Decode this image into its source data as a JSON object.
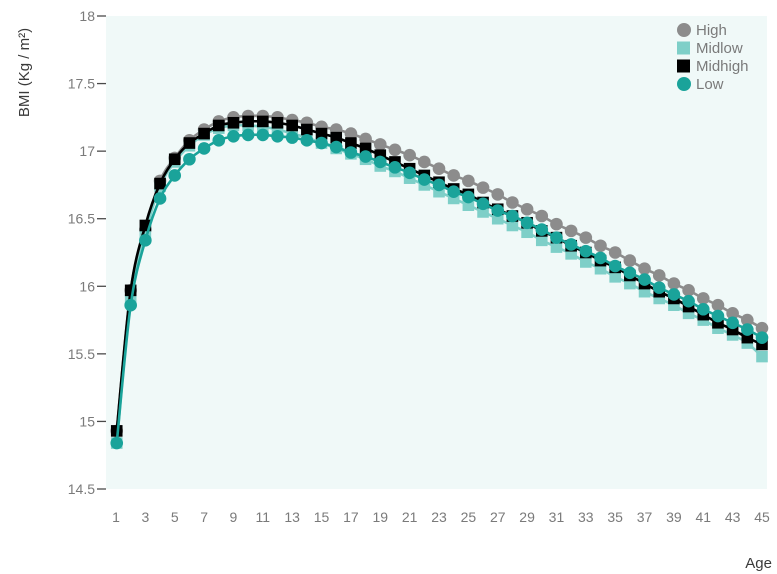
{
  "chart_data": {
    "type": "line",
    "title": "",
    "xlabel": "Age",
    "ylabel": "BMI (Kg / m²)",
    "xlim": [
      1,
      45
    ],
    "ylim": [
      14.5,
      18
    ],
    "x_ticks": [
      1,
      3,
      5,
      7,
      9,
      11,
      13,
      15,
      17,
      19,
      21,
      23,
      25,
      27,
      29,
      31,
      33,
      35,
      37,
      39,
      41,
      43,
      45
    ],
    "y_ticks": [
      14.5,
      15,
      15.5,
      16,
      16.5,
      17,
      17.5,
      18
    ],
    "y_tick_labels": [
      "14.5",
      "15",
      "15.5",
      "16",
      "16.5",
      "17",
      "17.5",
      "18"
    ],
    "grid": false,
    "background_color": "#f0f9f8",
    "legend_position": "top-right",
    "x": [
      1.05,
      2,
      3,
      4,
      5,
      6,
      7,
      8,
      9,
      10,
      11,
      12,
      13,
      14,
      15,
      16,
      17,
      18,
      19,
      20,
      21,
      22,
      23,
      24,
      25,
      26,
      27,
      28,
      29,
      30,
      31,
      32,
      33,
      34,
      35,
      36,
      37,
      38,
      39,
      40,
      41,
      42,
      43,
      44,
      45
    ],
    "series": [
      {
        "name": "High",
        "color": "#8c8c8c",
        "marker": "circle",
        "values": [
          14.93,
          15.97,
          16.42,
          16.78,
          16.95,
          17.08,
          17.16,
          17.22,
          17.25,
          17.26,
          17.26,
          17.25,
          17.23,
          17.21,
          17.18,
          17.16,
          17.13,
          17.09,
          17.05,
          17.01,
          16.97,
          16.92,
          16.87,
          16.82,
          16.78,
          16.73,
          16.68,
          16.62,
          16.57,
          16.52,
          16.46,
          16.41,
          16.36,
          16.3,
          16.25,
          16.19,
          16.13,
          16.08,
          16.02,
          15.97,
          15.91,
          15.86,
          15.8,
          15.75,
          15.69
        ]
      },
      {
        "name": "Midlow",
        "color": "#7ecfc8",
        "marker": "square",
        "values": [
          14.84,
          15.9,
          16.39,
          16.74,
          16.92,
          17.04,
          17.12,
          17.17,
          17.19,
          17.19,
          17.18,
          17.16,
          17.13,
          17.1,
          17.06,
          17.02,
          16.98,
          16.94,
          16.89,
          16.85,
          16.8,
          16.75,
          16.7,
          16.65,
          16.6,
          16.55,
          16.5,
          16.45,
          16.4,
          16.34,
          16.29,
          16.24,
          16.18,
          16.13,
          16.07,
          16.02,
          15.96,
          15.91,
          15.86,
          15.8,
          15.75,
          15.69,
          15.64,
          15.58,
          15.48
        ]
      },
      {
        "name": "Midhigh",
        "color": "#000000",
        "marker": "square",
        "values": [
          14.93,
          15.97,
          16.45,
          16.76,
          16.94,
          17.06,
          17.13,
          17.19,
          17.21,
          17.22,
          17.22,
          17.21,
          17.19,
          17.16,
          17.13,
          17.1,
          17.06,
          17.02,
          16.97,
          16.92,
          16.87,
          16.82,
          16.77,
          16.72,
          16.68,
          16.62,
          16.57,
          16.52,
          16.47,
          16.41,
          16.36,
          16.3,
          16.25,
          16.19,
          16.14,
          16.08,
          16.02,
          15.96,
          15.91,
          15.85,
          15.79,
          15.73,
          15.68,
          15.62,
          15.57
        ]
      },
      {
        "name": "Low",
        "color": "#1aa39a",
        "marker": "circle",
        "values": [
          14.84,
          15.86,
          16.34,
          16.65,
          16.82,
          16.94,
          17.02,
          17.08,
          17.11,
          17.12,
          17.12,
          17.11,
          17.1,
          17.08,
          17.06,
          17.03,
          16.99,
          16.96,
          16.92,
          16.88,
          16.84,
          16.79,
          16.75,
          16.7,
          16.66,
          16.61,
          16.56,
          16.52,
          16.47,
          16.42,
          16.36,
          16.31,
          16.26,
          16.21,
          16.15,
          16.1,
          16.05,
          15.99,
          15.94,
          15.89,
          15.83,
          15.78,
          15.73,
          15.68,
          15.62
        ]
      }
    ]
  }
}
